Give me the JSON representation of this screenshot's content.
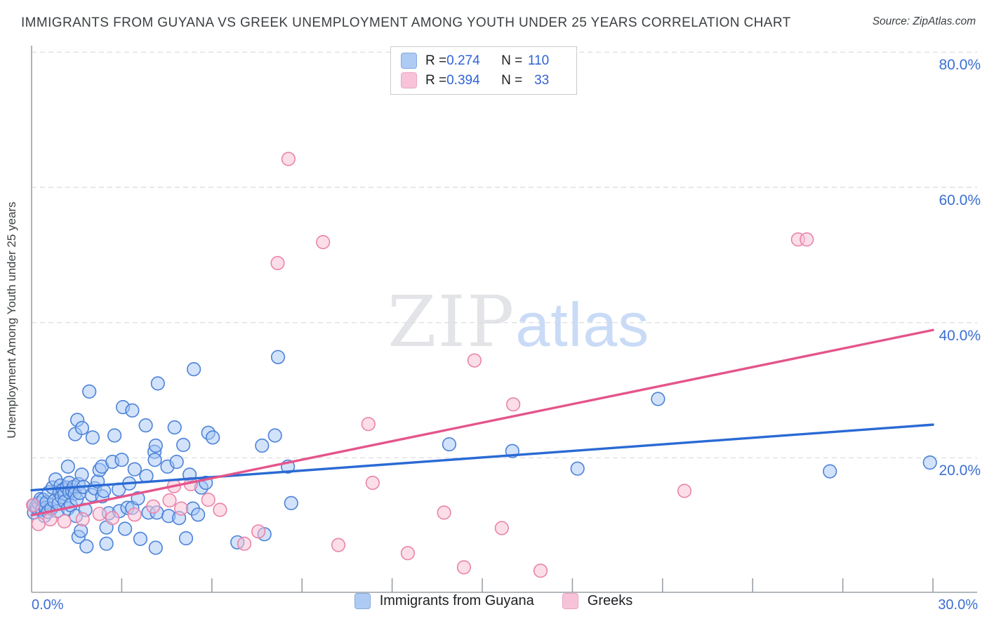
{
  "title": "IMMIGRANTS FROM GUYANA VS GREEK UNEMPLOYMENT AMONG YOUTH UNDER 25 YEARS CORRELATION CHART",
  "source": "Source: ZipAtlas.com",
  "y_axis_title": "Unemployment Among Youth under 25 years",
  "watermark": {
    "zip": "ZIP",
    "atlas": "atlas"
  },
  "stats_legend": {
    "rows": [
      {
        "series": "Immigrants from Guyana",
        "r_label": "R = ",
        "r_value": "0.274",
        "n_label": "N = ",
        "n_value": "110"
      },
      {
        "series": "Greeks",
        "r_label": "R = ",
        "r_value": "0.394",
        "n_label": "N = ",
        "n_value": "33"
      }
    ]
  },
  "x_axis": {
    "min_label": "0.0%",
    "max_label": "30.0%"
  },
  "y_axis": {
    "tick_labels": [
      "80.0%",
      "60.0%",
      "40.0%",
      "20.0%"
    ],
    "tick_values": [
      80,
      60,
      40,
      20
    ]
  },
  "bottom_legend": {
    "items": [
      {
        "label": "Immigrants from Guyana",
        "color": "blue"
      },
      {
        "label": "Greeks",
        "color": "pink"
      }
    ]
  },
  "colors": {
    "blue_point_fill": "rgba(164,198,245,0.50)",
    "blue_point_stroke": "#4d82d8",
    "pink_point_fill": "rgba(248,195,214,0.55)",
    "pink_point_stroke": "#ea84ab",
    "blue_trend": "#2a6ad4",
    "pink_trend": "#e4558b",
    "gridline": "#d8dade",
    "axis": "#9aa0a6",
    "tick": "#9aa0a6",
    "label_blue": "#3b6fd1"
  },
  "chart_data": {
    "type": "scatter",
    "title": "IMMIGRANTS FROM GUYANA VS GREEK UNEMPLOYMENT AMONG YOUTH UNDER 25 YEARS CORRELATION CHART",
    "xlabel": "Immigrants from Guyana (%)",
    "ylabel": "Unemployment Among Youth under 25 years (%)",
    "x_range": [
      0,
      30
    ],
    "y_range": [
      0,
      81
    ],
    "x_tick_step": 3,
    "grid": "dashed-horizontal",
    "series": [
      {
        "name": "Immigrants from Guyana",
        "R": 0.274,
        "N": 110,
        "points": [
          [
            0.08,
            13.0
          ],
          [
            0.08,
            11.9
          ],
          [
            0.15,
            12.8
          ],
          [
            0.19,
            12.5
          ],
          [
            0.23,
            13.3
          ],
          [
            0.3,
            13.9
          ],
          [
            0.35,
            12.3
          ],
          [
            0.39,
            13.8
          ],
          [
            0.43,
            11.4
          ],
          [
            0.47,
            12.6
          ],
          [
            0.5,
            13.4
          ],
          [
            0.55,
            12.0
          ],
          [
            0.58,
            14.9
          ],
          [
            0.66,
            12.5
          ],
          [
            0.7,
            15.6
          ],
          [
            0.75,
            13.6
          ],
          [
            0.8,
            16.8
          ],
          [
            0.86,
            12.1
          ],
          [
            0.9,
            13.2
          ],
          [
            0.93,
            14.9
          ],
          [
            0.97,
            15.9
          ],
          [
            1.0,
            14.2
          ],
          [
            1.05,
            15.3
          ],
          [
            1.09,
            14.7
          ],
          [
            1.1,
            13.5
          ],
          [
            1.17,
            15.6
          ],
          [
            1.21,
            18.7
          ],
          [
            1.21,
            12.5
          ],
          [
            1.25,
            16.3
          ],
          [
            1.26,
            14.9
          ],
          [
            1.3,
            13.0
          ],
          [
            1.35,
            15.2
          ],
          [
            1.4,
            15.7
          ],
          [
            1.44,
            14.7
          ],
          [
            1.45,
            23.5
          ],
          [
            1.48,
            11.4
          ],
          [
            1.5,
            13.9
          ],
          [
            1.52,
            25.6
          ],
          [
            1.56,
            16.1
          ],
          [
            1.56,
            8.3
          ],
          [
            1.6,
            14.8
          ],
          [
            1.64,
            9.2
          ],
          [
            1.67,
            17.5
          ],
          [
            1.68,
            24.4
          ],
          [
            1.73,
            15.7
          ],
          [
            1.79,
            12.3
          ],
          [
            1.83,
            6.9
          ],
          [
            1.92,
            29.8
          ],
          [
            2.0,
            14.5
          ],
          [
            2.03,
            23.0
          ],
          [
            2.1,
            15.5
          ],
          [
            2.2,
            16.5
          ],
          [
            2.26,
            18.2
          ],
          [
            2.34,
            18.7
          ],
          [
            2.35,
            14.3
          ],
          [
            2.41,
            15.1
          ],
          [
            2.49,
            9.7
          ],
          [
            2.49,
            7.3
          ],
          [
            2.57,
            11.8
          ],
          [
            2.69,
            19.4
          ],
          [
            2.76,
            23.3
          ],
          [
            2.9,
            15.3
          ],
          [
            2.92,
            12.1
          ],
          [
            3.0,
            19.7
          ],
          [
            3.04,
            27.5
          ],
          [
            3.11,
            9.5
          ],
          [
            3.19,
            12.6
          ],
          [
            3.25,
            16.2
          ],
          [
            3.35,
            27.0
          ],
          [
            3.35,
            12.6
          ],
          [
            3.43,
            18.3
          ],
          [
            3.54,
            14.0
          ],
          [
            3.62,
            8.0
          ],
          [
            3.8,
            24.8
          ],
          [
            3.82,
            17.3
          ],
          [
            3.89,
            11.9
          ],
          [
            4.09,
            20.9
          ],
          [
            4.1,
            19.7
          ],
          [
            4.13,
            21.8
          ],
          [
            4.13,
            6.7
          ],
          [
            4.17,
            11.9
          ],
          [
            4.2,
            31.0
          ],
          [
            4.52,
            18.7
          ],
          [
            4.56,
            11.4
          ],
          [
            4.76,
            24.5
          ],
          [
            4.83,
            19.4
          ],
          [
            4.91,
            11.1
          ],
          [
            5.05,
            21.9
          ],
          [
            5.14,
            8.1
          ],
          [
            5.26,
            17.5
          ],
          [
            5.37,
            12.5
          ],
          [
            5.4,
            33.1
          ],
          [
            5.54,
            11.6
          ],
          [
            5.65,
            15.6
          ],
          [
            5.8,
            16.3
          ],
          [
            5.88,
            23.7
          ],
          [
            6.03,
            23.0
          ],
          [
            6.85,
            7.5
          ],
          [
            7.67,
            21.8
          ],
          [
            7.75,
            8.7
          ],
          [
            8.1,
            23.3
          ],
          [
            8.2,
            34.9
          ],
          [
            8.53,
            18.7
          ],
          [
            8.64,
            13.3
          ],
          [
            13.9,
            22.0
          ],
          [
            16.0,
            21.0
          ],
          [
            18.17,
            18.4
          ],
          [
            20.85,
            28.7
          ],
          [
            26.57,
            18.0
          ],
          [
            29.9,
            19.3
          ]
        ],
        "trend_line": {
          "x": [
            0,
            30
          ],
          "y": [
            15.2,
            24.9
          ]
        }
      },
      {
        "name": "Greeks",
        "R": 0.394,
        "N": 33,
        "points": [
          [
            0.05,
            13.0
          ],
          [
            0.23,
            10.2
          ],
          [
            0.62,
            10.9
          ],
          [
            1.09,
            10.6
          ],
          [
            1.7,
            10.9
          ],
          [
            2.26,
            11.7
          ],
          [
            2.69,
            11.1
          ],
          [
            3.43,
            11.6
          ],
          [
            4.05,
            12.8
          ],
          [
            4.59,
            13.7
          ],
          [
            4.74,
            15.8
          ],
          [
            4.98,
            12.5
          ],
          [
            5.3,
            16.1
          ],
          [
            5.88,
            13.8
          ],
          [
            6.27,
            12.3
          ],
          [
            7.08,
            7.3
          ],
          [
            7.55,
            9.1
          ],
          [
            8.19,
            48.8
          ],
          [
            8.55,
            64.2
          ],
          [
            9.7,
            51.9
          ],
          [
            10.21,
            7.1
          ],
          [
            11.21,
            25.0
          ],
          [
            11.35,
            16.3
          ],
          [
            12.52,
            5.9
          ],
          [
            13.73,
            11.9
          ],
          [
            14.39,
            3.8
          ],
          [
            14.74,
            34.4
          ],
          [
            15.65,
            9.6
          ],
          [
            16.03,
            27.9
          ],
          [
            16.94,
            3.3
          ],
          [
            21.73,
            15.1
          ],
          [
            25.51,
            52.3
          ],
          [
            25.8,
            52.3
          ]
        ],
        "trend_line": {
          "x": [
            0,
            30
          ],
          "y": [
            11.5,
            38.9
          ]
        }
      }
    ]
  }
}
